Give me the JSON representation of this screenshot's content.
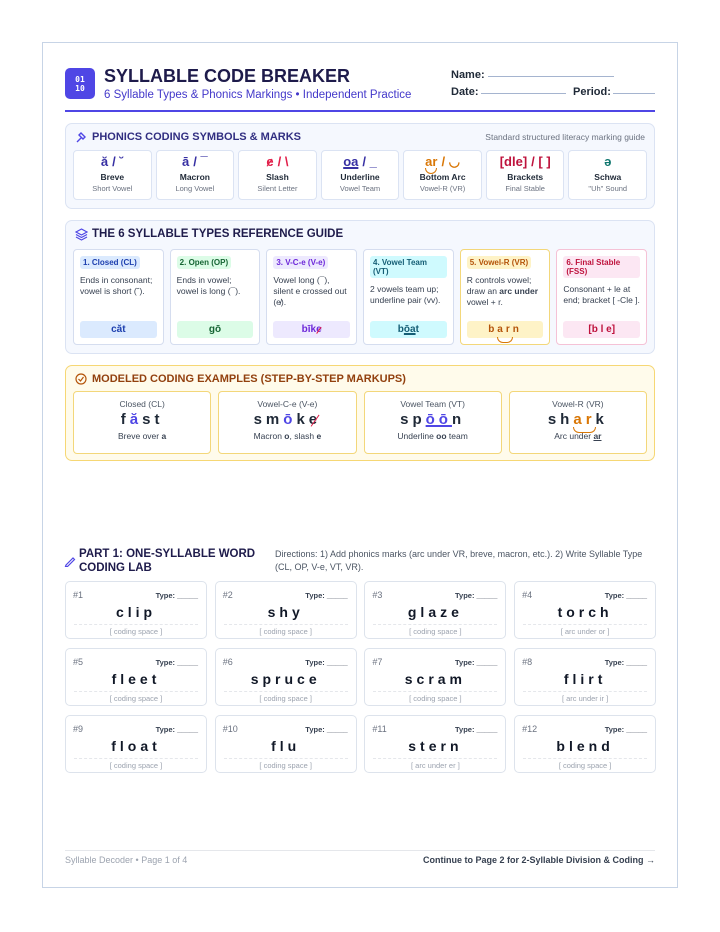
{
  "header": {
    "logo": [
      "01",
      "10"
    ],
    "title": "SYLLABLE CODE BREAKER",
    "subtitle": "6 Syllable Types & Phonics Markings • Independent Practice",
    "fields": [
      "Name:",
      "Date:",
      "Period:"
    ]
  },
  "symbols": {
    "title": "PHONICS CODING SYMBOLS & MARKS",
    "note": "Standard structured literacy marking guide",
    "items": [
      {
        "mark": "ă",
        "sign": "/ ˘",
        "name": "Breve",
        "desc": "Short Vowel"
      },
      {
        "mark": "ā",
        "sign": "/ ¯",
        "name": "Macron",
        "desc": "Long Vowel"
      },
      {
        "mark": "e",
        "sign": "/ \\",
        "name": "Slash",
        "desc": "Silent Letter"
      },
      {
        "mark": "oa",
        "sign": "/ _",
        "name": "Underline",
        "desc": "Vowel Team"
      },
      {
        "mark": "ar",
        "sign": "/ ◡",
        "name": "Bottom Arc",
        "desc": "Vowel-R (VR)"
      },
      {
        "mark": "[dle]",
        "sign": "/ [ ]",
        "name": "Brackets",
        "desc": "Final Stable"
      },
      {
        "mark": "ə",
        "sign": "",
        "name": "Schwa",
        "desc": "\"Uh\" Sound"
      }
    ]
  },
  "types": {
    "title": "THE 6 SYLLABLE TYPES REFERENCE GUIDE",
    "items": [
      {
        "tag": "1. Closed (CL)",
        "desc": [
          "Ends in consonant; vowel is short (˘)."
        ],
        "example": [
          "căt"
        ]
      },
      {
        "tag": "2. Open (OP)",
        "desc": [
          "Ends in vowel; vowel is long (¯)."
        ],
        "example": [
          "gō"
        ]
      },
      {
        "tag": "3. V-C-e (V-e)",
        "desc": [
          "Vowel long (¯), silent e crossed out (e̸)."
        ],
        "example": [
          "bīk",
          "e"
        ]
      },
      {
        "tag": "4. Vowel Team (VT)",
        "desc": [
          "2 vowels team up; underline pair (vv)."
        ],
        "example": [
          "b",
          "ōa",
          "t"
        ]
      },
      {
        "tag": "5. Vowel-R (VR)",
        "desc": [
          "R controls vowel; draw an ",
          "arc under",
          " vowel + r."
        ],
        "example": [
          "b",
          "ar",
          "n"
        ]
      },
      {
        "tag": "6. Final Stable (FSS)",
        "desc": [
          "Consonant + le at end; bracket [ -Cle ]."
        ],
        "example": [
          "[b l e]"
        ]
      }
    ]
  },
  "modeled": {
    "title": "MODELED CODING EXAMPLES (STEP-BY-STEP MARKUPS)",
    "items": [
      {
        "label": "Closed (CL)",
        "word": [
          "f",
          "ă",
          "st"
        ],
        "caption": [
          "Breve over ",
          "a"
        ]
      },
      {
        "label": "Vowel-C-e (V-e)",
        "word": [
          "sm",
          "ō",
          "k",
          "e"
        ],
        "caption": [
          "Macron ",
          "o",
          ", slash ",
          "e"
        ]
      },
      {
        "label": "Vowel Team (VT)",
        "word": [
          "sp",
          "ōō",
          "n"
        ],
        "caption": [
          "Underline ",
          "oo",
          " team"
        ]
      },
      {
        "label": "Vowel-R (VR)",
        "word": [
          "sh",
          "ar",
          "k"
        ],
        "caption": [
          "Arc under ",
          "ar"
        ]
      }
    ]
  },
  "part1": {
    "title": "PART 1: ONE-SYLLABLE WORD CODING LAB",
    "directions": "Directions: 1) Add phonics marks (arc under VR, breve, macron, etc.). 2) Write Syllable Type (CL, OP, V-e, VT, VR).",
    "type_label": "Type: _____",
    "cards": [
      {
        "num": "#1",
        "word": "clip",
        "space": "[ coding space ]"
      },
      {
        "num": "#2",
        "word": "shy",
        "space": "[ coding space ]"
      },
      {
        "num": "#3",
        "word": "glaze",
        "space": "[ coding space ]"
      },
      {
        "num": "#4",
        "word": "torch",
        "space": "[ arc under or ]"
      },
      {
        "num": "#5",
        "word": "fleet",
        "space": "[ coding space ]"
      },
      {
        "num": "#6",
        "word": "spruce",
        "space": "[ coding space ]"
      },
      {
        "num": "#7",
        "word": "scram",
        "space": "[ coding space ]"
      },
      {
        "num": "#8",
        "word": "flirt",
        "space": "[ arc under ir ]"
      },
      {
        "num": "#9",
        "word": "float",
        "space": "[ coding space ]"
      },
      {
        "num": "#10",
        "word": "flu",
        "space": "[ coding space ]"
      },
      {
        "num": "#11",
        "word": "stern",
        "space": "[ arc under er ]"
      },
      {
        "num": "#12",
        "word": "blend",
        "space": "[ coding space ]"
      }
    ]
  },
  "footer": {
    "left": "Syllable Decoder • Page 1 of 4",
    "right": "Continue to Page 2 for 2-Syllable Division & Coding →"
  }
}
